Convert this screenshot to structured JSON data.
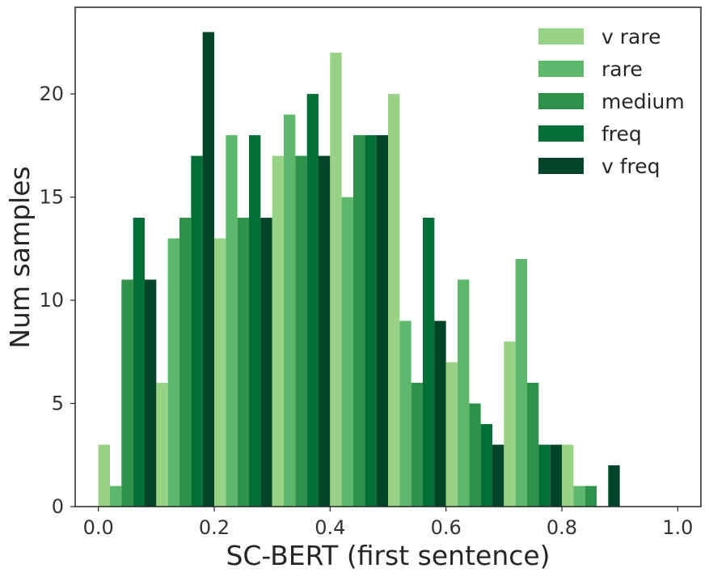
{
  "chart_data": {
    "type": "bar",
    "title": "",
    "xlabel": "SC-BERT (first sentence)",
    "ylabel": "Num samples",
    "xlim": [
      -0.04,
      1.04
    ],
    "ylim": [
      0,
      24.2
    ],
    "xticks": [
      "0.0",
      "0.2",
      "0.4",
      "0.6",
      "0.8",
      "1.0"
    ],
    "yticks": [
      "0",
      "5",
      "10",
      "15",
      "20"
    ],
    "grid": false,
    "legend": "top-right",
    "bin_edges": [
      0,
      0.1,
      0.2,
      0.3,
      0.4,
      0.5,
      0.6,
      0.7,
      0.8,
      0.9,
      1.0
    ],
    "series": [
      {
        "name": "v rare",
        "color": "#98d385",
        "values": [
          3,
          6,
          13,
          17,
          22,
          20,
          7,
          8,
          3,
          0
        ]
      },
      {
        "name": "rare",
        "color": "#5db86c",
        "values": [
          1,
          13,
          18,
          19,
          15,
          9,
          11,
          12,
          1,
          0
        ]
      },
      {
        "name": "medium",
        "color": "#2e924b",
        "values": [
          11,
          14,
          14,
          17,
          18,
          6,
          5,
          6,
          1,
          0
        ]
      },
      {
        "name": "freq",
        "color": "#046e37",
        "values": [
          14,
          17,
          18,
          20,
          18,
          14,
          4,
          3,
          0,
          0
        ]
      },
      {
        "name": "v freq",
        "color": "#00452a",
        "values": [
          11,
          23,
          14,
          17,
          18,
          9,
          3,
          3,
          2,
          0
        ]
      }
    ]
  }
}
